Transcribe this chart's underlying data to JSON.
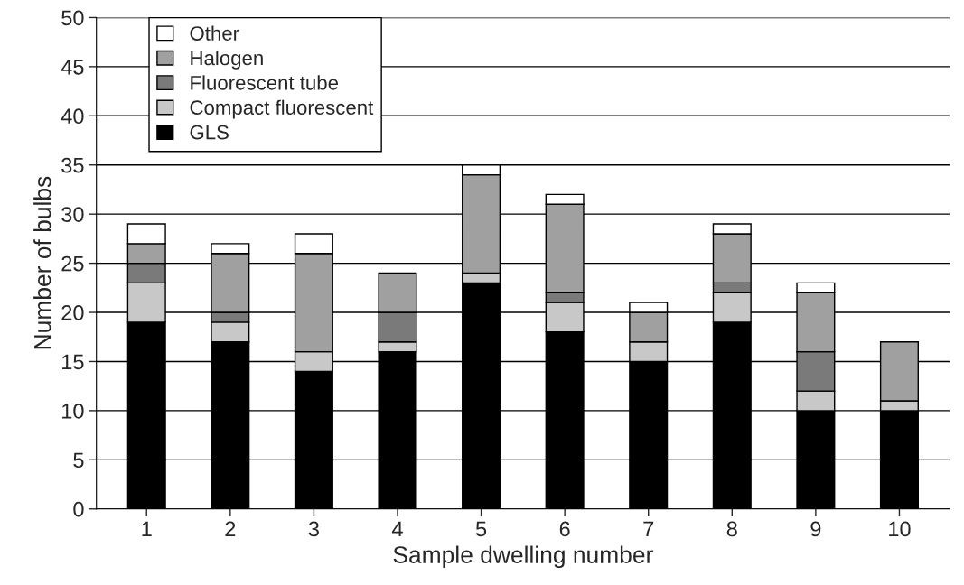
{
  "chart_data": {
    "type": "bar",
    "stacked": true,
    "xlabel": "Sample dwelling number",
    "ylabel": "Number of bulbs",
    "categories": [
      "1",
      "2",
      "3",
      "4",
      "5",
      "6",
      "7",
      "8",
      "9",
      "10"
    ],
    "series": [
      {
        "name": "GLS",
        "color": "#000000",
        "values": [
          19,
          17,
          14,
          16,
          23,
          18,
          15,
          19,
          10,
          10
        ]
      },
      {
        "name": "Compact fluorescent",
        "color": "#c8c8c8",
        "values": [
          4,
          2,
          2,
          1,
          1,
          3,
          2,
          3,
          2,
          1
        ]
      },
      {
        "name": "Fluorescent tube",
        "color": "#7a7a7a",
        "values": [
          2,
          1,
          0,
          3,
          0,
          1,
          0,
          1,
          4,
          0
        ]
      },
      {
        "name": "Halogen",
        "color": "#a0a0a0",
        "values": [
          2,
          6,
          10,
          4,
          10,
          9,
          3,
          5,
          6,
          6
        ]
      },
      {
        "name": "Other",
        "color": "#ffffff",
        "values": [
          2,
          1,
          2,
          0,
          1,
          1,
          1,
          1,
          1,
          0
        ]
      }
    ],
    "ylim": [
      0,
      50
    ],
    "yticks": [
      0,
      5,
      10,
      15,
      20,
      25,
      30,
      35,
      40,
      45,
      50
    ],
    "grid": "y",
    "legend": "top left"
  }
}
